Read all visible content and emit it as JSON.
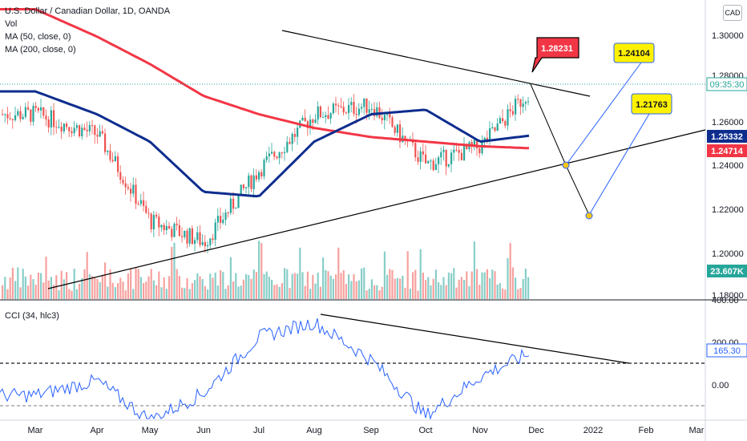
{
  "header": {
    "title": "U.S. Dollar / Canadian Dollar, 1D, OANDA",
    "vol_label": "Vol",
    "ma50_label": "MA (50, close, 0)",
    "ma200_label": "MA (200, close, 0)",
    "currency": "CAD"
  },
  "colors": {
    "up": "#26a69a",
    "down": "#ef5350",
    "ma50": "#0d2d8e",
    "ma200": "#f23645",
    "cci": "#2962ff",
    "trendline": "#000000",
    "badge_yellow": "#fff200"
  },
  "price_axis": {
    "ticks": [
      "1.30000",
      "1.28000",
      "1.26000",
      "1.24000",
      "1.22000",
      "1.20000",
      "1.18000"
    ],
    "time_badge": "09:35:30",
    "ma50_badge": "1.25332",
    "ma200_badge": "1.24714",
    "volume_badge": "23.607K"
  },
  "time_axis": {
    "labels": [
      "Mar",
      "Apr",
      "May",
      "Jun",
      "Jul",
      "Aug",
      "Sep",
      "Oct",
      "Nov",
      "Dec",
      "2022",
      "Feb",
      "Mar"
    ]
  },
  "annotations": {
    "current_high": "1.28231",
    "target_1": "1.24104",
    "target_2": "1.21763"
  },
  "cci_panel": {
    "label": "CCI (34, hlc3)",
    "ticks": [
      "400.00",
      "200.00",
      "0.00"
    ],
    "value_badge": "165.30"
  },
  "chart_data": {
    "type": "candlestick",
    "title": "U.S. Dollar / Canadian Dollar, 1D, OANDA",
    "x": [
      "Mar",
      "Apr",
      "May",
      "Jun",
      "Jul",
      "Aug",
      "Sep",
      "Oct",
      "Nov",
      "Dec"
    ],
    "price_close_monthly_approx": [
      1.262,
      1.253,
      1.215,
      1.206,
      1.238,
      1.262,
      1.266,
      1.24,
      1.248,
      1.276
    ],
    "ma50_monthly_approx": [
      1.272,
      1.262,
      1.25,
      1.228,
      1.226,
      1.25,
      1.262,
      1.264,
      1.25,
      1.253
    ],
    "ma200_monthly_approx": [
      1.308,
      1.296,
      1.284,
      1.27,
      1.262,
      1.256,
      1.252,
      1.25,
      1.248,
      1.247
    ],
    "cci_monthly_approx": [
      -50,
      20,
      -170,
      -40,
      230,
      300,
      120,
      -150,
      40,
      165
    ],
    "ylim": [
      1.18,
      1.305
    ],
    "cci_ylim": [
      -250,
      400
    ]
  }
}
